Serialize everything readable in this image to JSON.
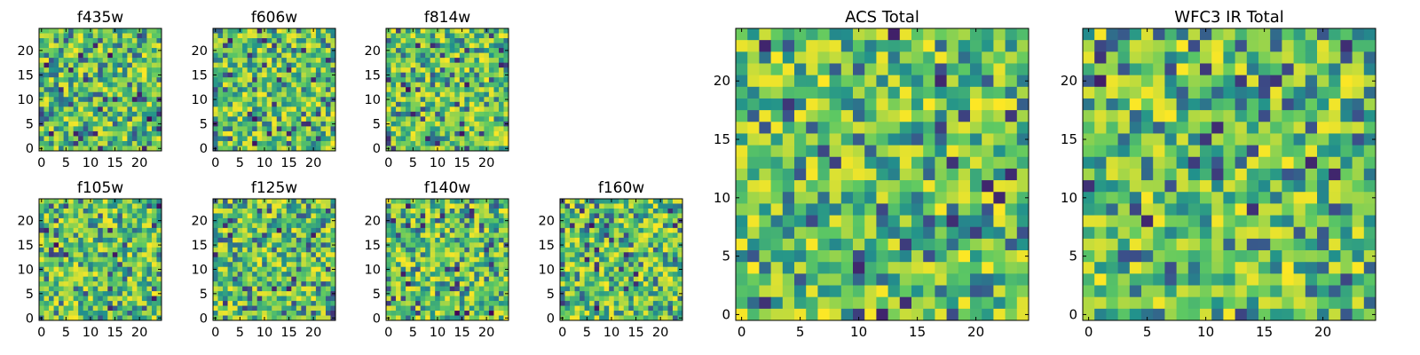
{
  "chart_data": {
    "type": "heatmap",
    "colormap": [
      "#440154",
      "#3b528b",
      "#21918c",
      "#5ec962",
      "#fde725"
    ],
    "panels": [
      {
        "title": "f435w",
        "grid_size": 25,
        "extent": [
          -0.5,
          24.5
        ],
        "xticks": [
          0,
          5,
          10,
          15,
          20
        ],
        "yticks": [
          0,
          5,
          10,
          15,
          20
        ],
        "seed": 11
      },
      {
        "title": "f606w",
        "grid_size": 25,
        "extent": [
          -0.5,
          24.5
        ],
        "xticks": [
          0,
          5,
          10,
          15,
          20
        ],
        "yticks": [
          0,
          5,
          10,
          15,
          20
        ],
        "seed": 23
      },
      {
        "title": "f814w",
        "grid_size": 25,
        "extent": [
          -0.5,
          24.5
        ],
        "xticks": [
          0,
          5,
          10,
          15,
          20
        ],
        "yticks": [
          0,
          5,
          10,
          15,
          20
        ],
        "seed": 37
      },
      {
        "title": "f105w",
        "grid_size": 25,
        "extent": [
          -0.5,
          24.5
        ],
        "xticks": [
          0,
          5,
          10,
          15,
          20
        ],
        "yticks": [
          0,
          5,
          10,
          15,
          20
        ],
        "seed": 41
      },
      {
        "title": "f125w",
        "grid_size": 25,
        "extent": [
          -0.5,
          24.5
        ],
        "xticks": [
          0,
          5,
          10,
          15,
          20
        ],
        "yticks": [
          0,
          5,
          10,
          15,
          20
        ],
        "seed": 53
      },
      {
        "title": "f140w",
        "grid_size": 25,
        "extent": [
          -0.5,
          24.5
        ],
        "xticks": [
          0,
          5,
          10,
          15,
          20
        ],
        "yticks": [
          0,
          5,
          10,
          15,
          20
        ],
        "seed": 67
      },
      {
        "title": "f160w",
        "grid_size": 25,
        "extent": [
          -0.5,
          24.5
        ],
        "xticks": [
          0,
          5,
          10,
          15,
          20
        ],
        "yticks": [
          0,
          5,
          10,
          15,
          20
        ],
        "seed": 79
      },
      {
        "title": "ACS Total",
        "grid_size": 25,
        "extent": [
          -0.5,
          24.5
        ],
        "xticks": [
          0,
          5,
          10,
          15,
          20
        ],
        "yticks": [
          0,
          5,
          10,
          15,
          20
        ],
        "seed": 97
      },
      {
        "title": "WFC3 IR Total",
        "grid_size": 25,
        "extent": [
          -0.5,
          24.5
        ],
        "xticks": [
          0,
          5,
          10,
          15,
          20
        ],
        "yticks": [
          0,
          5,
          10,
          15,
          20
        ],
        "seed": 131
      }
    ]
  }
}
